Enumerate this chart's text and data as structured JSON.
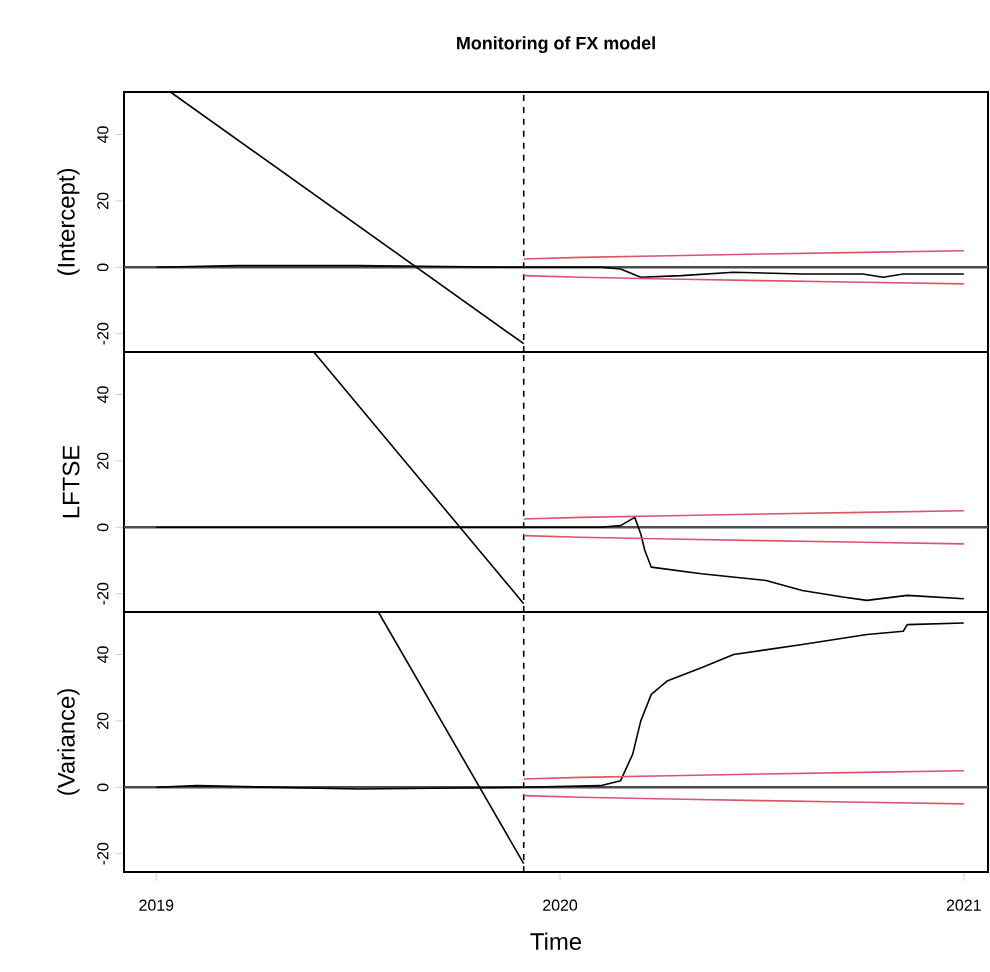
{
  "chart_data": [
    {
      "type": "line",
      "title": "Monitoring of FX model",
      "ylabel": "(Intercept)",
      "xlim": [
        2018.92,
        2021.06
      ],
      "ylim": [
        -25.5,
        52.8
      ],
      "yticks": [
        -20,
        0,
        20,
        40
      ],
      "tick_labels": "y",
      "series": [
        {
          "color": "#000000",
          "x": [
            2019.0,
            2019.2,
            2019.5,
            2019.91,
            2020.1,
            2020.15,
            2020.2,
            2020.3,
            2020.43,
            2020.6,
            2020.75,
            2020.8,
            2020.85,
            2021.0
          ],
          "values": [
            0,
            0.5,
            0.5,
            0,
            0,
            -0.5,
            -3,
            -2.5,
            -1.5,
            -2,
            -2,
            -3,
            -2,
            -2
          ]
        },
        {
          "color": "#df536b",
          "x": [
            2019.91,
            2020.05,
            2020.27,
            2020.5,
            2020.75,
            2021.0
          ],
          "values": [
            2.5,
            3,
            3.5,
            4,
            4.5,
            5
          ]
        },
        {
          "color": "#df536b",
          "x": [
            2019.91,
            2020.05,
            2020.27,
            2020.5,
            2020.75,
            2021.0
          ],
          "values": [
            -2.5,
            -3,
            -3.5,
            -4,
            -4.5,
            -5
          ]
        },
        {
          "color": "#000000",
          "x": [
            2019.035,
            2019.91
          ],
          "values": [
            52.8,
            -23
          ]
        }
      ],
      "ref_lines": [
        {
          "axis": "x",
          "value": 2019.91,
          "line_style": "dashed",
          "color": "#000000"
        },
        {
          "axis": "y",
          "value": 0,
          "color": "#4d4d4d"
        }
      ]
    },
    {
      "type": "line",
      "ylabel": "LFTSE",
      "xlim": [
        2018.92,
        2021.06
      ],
      "ylim": [
        -25.5,
        52.8
      ],
      "yticks": [
        -20,
        0,
        20,
        40
      ],
      "tick_labels": "y",
      "series": [
        {
          "color": "#000000",
          "x": [
            2019.0,
            2019.5,
            2019.91,
            2020.1,
            2020.15,
            2020.185,
            2020.2,
            2020.21,
            2020.226,
            2020.35,
            2020.51,
            2020.6,
            2020.7,
            2020.76,
            2020.86,
            2021.0
          ],
          "values": [
            0,
            0,
            0,
            0,
            0.5,
            3,
            -2,
            -7,
            -12,
            -14,
            -16,
            -19,
            -21,
            -22,
            -20.5,
            -21.5
          ]
        },
        {
          "color": "#df536b",
          "x": [
            2019.91,
            2020.05,
            2020.27,
            2020.5,
            2020.75,
            2021.0
          ],
          "values": [
            2.5,
            3,
            3.5,
            4,
            4.5,
            5
          ]
        },
        {
          "color": "#df536b",
          "x": [
            2019.91,
            2020.05,
            2020.27,
            2020.5,
            2020.75,
            2021.0
          ],
          "values": [
            -2.5,
            -3,
            -3.5,
            -4,
            -4.5,
            -5
          ]
        },
        {
          "color": "#000000",
          "x": [
            2019.39,
            2019.91
          ],
          "values": [
            52.8,
            -23
          ]
        }
      ],
      "ref_lines": [
        {
          "axis": "x",
          "value": 2019.91,
          "line_style": "dashed",
          "color": "#000000"
        },
        {
          "axis": "y",
          "value": 0,
          "color": "#4d4d4d"
        }
      ]
    },
    {
      "type": "line",
      "xlabel": "Time",
      "ylabel": "(Variance)",
      "xlim": [
        2018.92,
        2021.06
      ],
      "ylim": [
        -25.5,
        52.8
      ],
      "xticks": [
        2019,
        2020,
        2021
      ],
      "yticks": [
        -20,
        0,
        20,
        40
      ],
      "series": [
        {
          "color": "#000000",
          "x": [
            2019.0,
            2019.1,
            2019.5,
            2019.91,
            2020.1,
            2020.15,
            2020.18,
            2020.2,
            2020.226,
            2020.265,
            2020.35,
            2020.43,
            2020.6,
            2020.76,
            2020.85,
            2020.86,
            2021.0
          ],
          "values": [
            0,
            0.5,
            -0.5,
            0,
            0.5,
            2,
            10,
            20,
            28,
            32,
            36,
            40,
            43,
            46,
            47,
            49,
            49.5
          ]
        },
        {
          "color": "#df536b",
          "x": [
            2019.91,
            2020.05,
            2020.27,
            2020.5,
            2020.75,
            2021.0
          ],
          "values": [
            2.5,
            3,
            3.5,
            4,
            4.5,
            5
          ]
        },
        {
          "color": "#df536b",
          "x": [
            2019.91,
            2020.05,
            2020.27,
            2020.5,
            2020.75,
            2021.0
          ],
          "values": [
            -2.5,
            -3,
            -3.5,
            -4,
            -4.5,
            -5
          ]
        },
        {
          "color": "#000000",
          "x": [
            2019.55,
            2019.91
          ],
          "values": [
            52.8,
            -23
          ]
        }
      ],
      "ref_lines": [
        {
          "axis": "x",
          "value": 2019.91,
          "line_style": "dashed",
          "color": "#000000"
        },
        {
          "axis": "y",
          "value": 0,
          "color": "#4d4d4d"
        }
      ]
    }
  ]
}
